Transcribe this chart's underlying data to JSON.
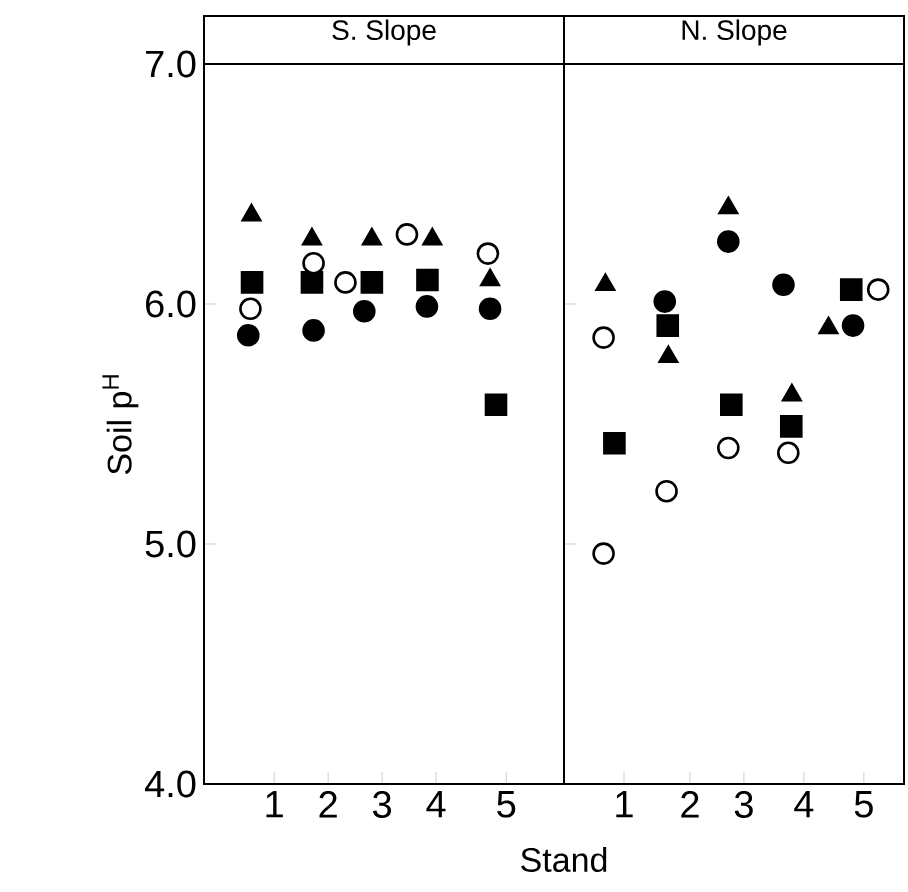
{
  "chart_data": [
    {
      "type": "scatter",
      "title": "S. Slope",
      "xlabel": "Stand",
      "ylabel": "Soil p$^{H}$",
      "xlim": [
        -0.3,
        6.37
      ],
      "ylim": [
        4,
        7
      ],
      "xticks": [
        1,
        2,
        3,
        4,
        {
          "value": 5.3,
          "label": "5"
        }
      ],
      "yticks": [
        {
          "value": 4,
          "label": "4.0"
        },
        {
          "value": 5,
          "label": "5.0"
        },
        {
          "value": 6,
          "label": "6.0"
        },
        {
          "value": 7,
          "label": "7.0"
        }
      ],
      "series": [
        {
          "color": "#000000",
          "marker": "triangle",
          "x": [
            0.58,
            1.7,
            2.81,
            3.93,
            5.0
          ],
          "values": [
            6.37,
            6.27,
            6.27,
            6.27,
            6.1
          ]
        },
        {
          "color": "#000000",
          "marker": "square",
          "x": [
            0.59,
            1.7,
            2.81,
            3.84,
            5.11
          ],
          "values": [
            6.09,
            6.09,
            6.09,
            6.1,
            5.58
          ]
        },
        {
          "color": "#000000",
          "marker": "circle",
          "x": [
            0.52,
            1.73,
            2.67,
            3.83,
            5.0
          ],
          "values": [
            5.87,
            5.89,
            5.97,
            5.99,
            5.98
          ]
        },
        {
          "color": "#ffffff",
          "marker": "circle",
          "x": [
            0.56,
            1.73,
            2.32,
            3.46,
            4.96
          ],
          "values": [
            5.98,
            6.17,
            6.09,
            6.29,
            6.21
          ]
        }
      ]
    },
    {
      "type": "scatter",
      "title": "N. Slope",
      "xlim": [
        0,
        5.67
      ],
      "ylim": [
        4,
        7
      ],
      "tick_labels": "x",
      "xticks": [
        1,
        {
          "value": 2.1,
          "label": "2"
        },
        3,
        4,
        5
      ],
      "yticks": [
        {
          "value": 4,
          "label": null
        },
        {
          "value": 5,
          "label": null
        },
        {
          "value": 6,
          "label": null
        },
        {
          "value": 7,
          "label": null
        }
      ],
      "series": [
        {
          "color": "#000000",
          "marker": "triangle",
          "x": [
            2.74,
            0.69,
            1.74,
            3.8,
            4.41
          ],
          "values": [
            6.4,
            6.08,
            5.78,
            5.62,
            5.9
          ]
        },
        {
          "color": "#000000",
          "marker": "square",
          "x": [
            0.84,
            1.73,
            2.79,
            3.79,
            4.79
          ],
          "values": [
            5.42,
            5.91,
            5.58,
            5.49,
            6.06
          ]
        },
        {
          "color": "#000000",
          "marker": "circle",
          "x": [
            2.74,
            1.68,
            3.66,
            4.82
          ],
          "values": [
            6.26,
            6.01,
            6.08,
            5.91
          ]
        },
        {
          "color": "#ffffff",
          "marker": "circle",
          "x": [
            0.66,
            0.66,
            1.71,
            2.74,
            3.74,
            5.24
          ],
          "values": [
            5.86,
            4.96,
            5.22,
            5.4,
            5.38,
            6.06
          ]
        }
      ]
    }
  ]
}
